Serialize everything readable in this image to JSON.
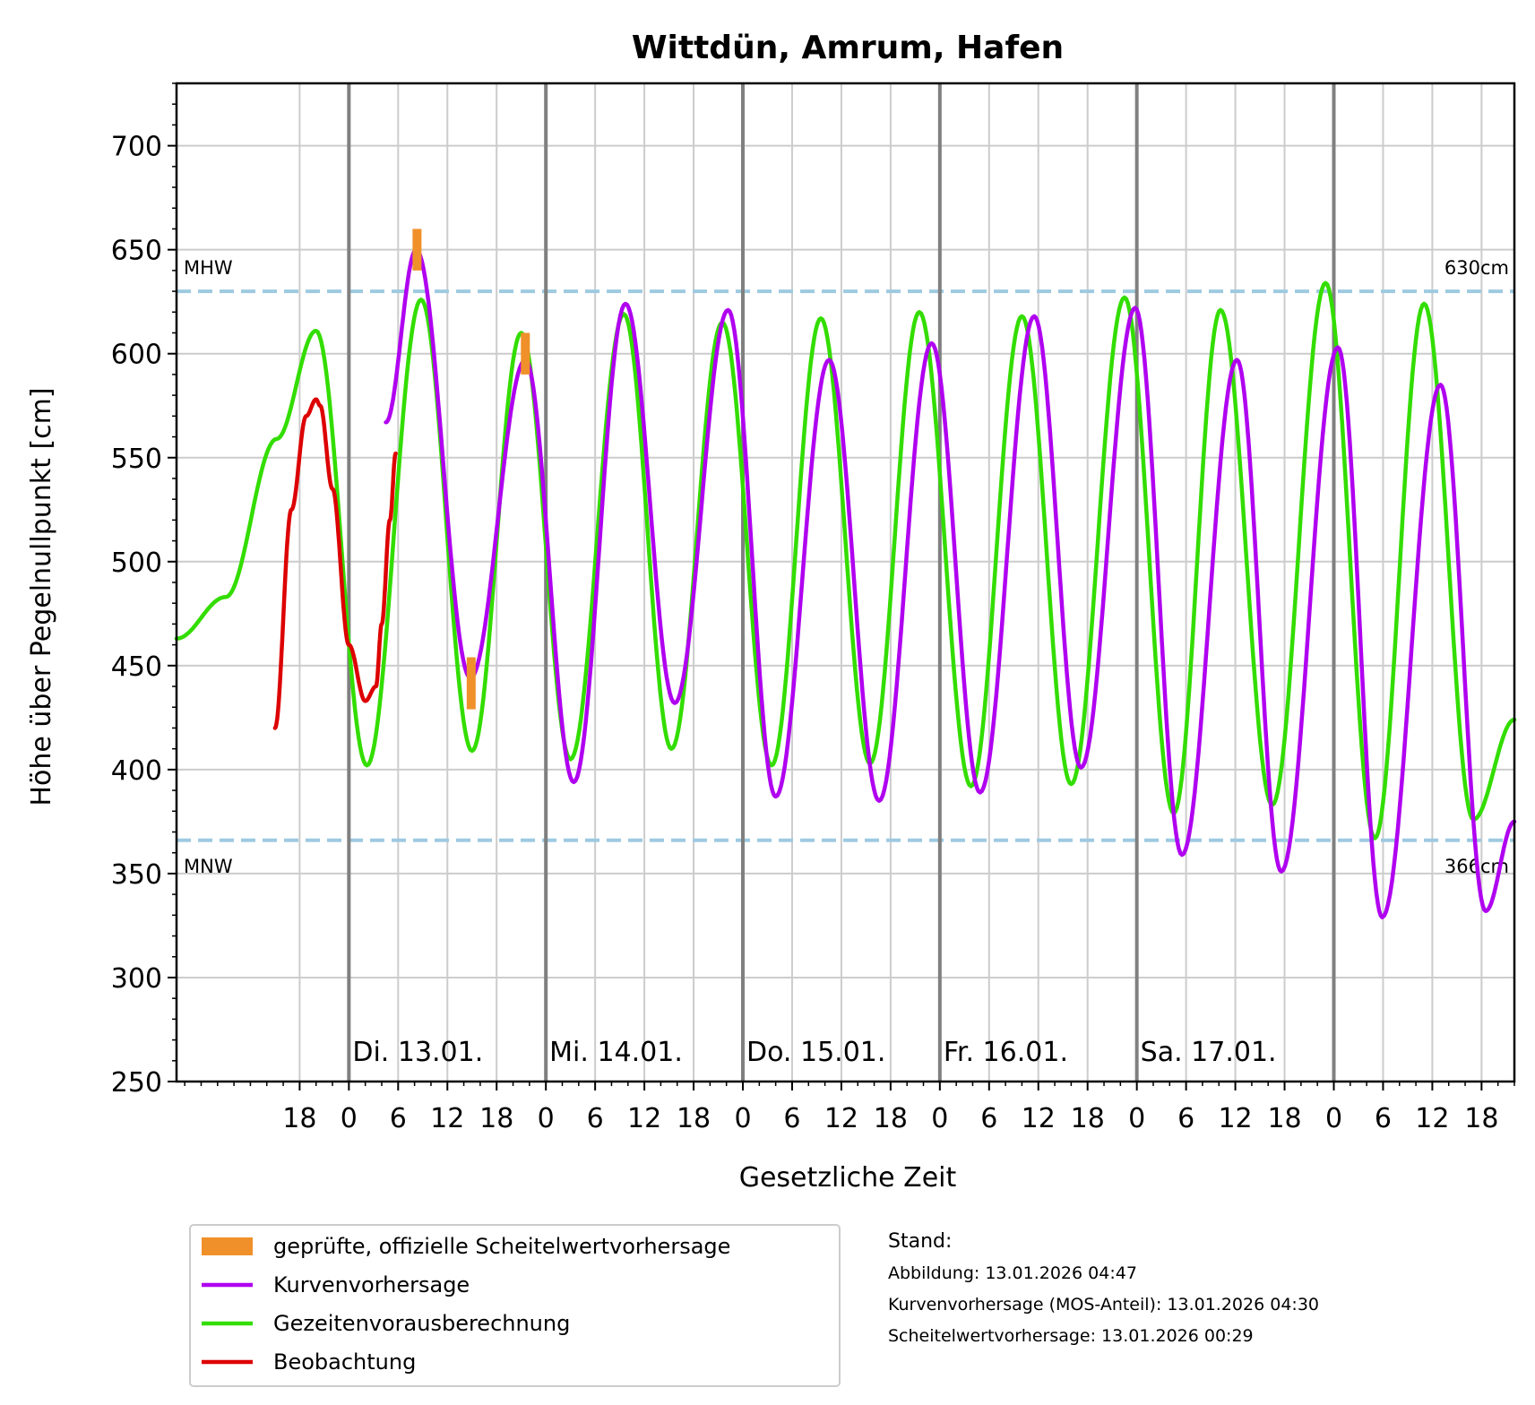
{
  "chart_data": {
    "type": "line",
    "title": "Wittdün, Amrum, Hafen",
    "xlabel": "Gesetzliche Zeit",
    "ylabel": "Höhe über Pegelnullpunkt [cm]",
    "ylim": [
      250,
      730
    ],
    "xlim_hours": [
      -21,
      142
    ],
    "yticks": [
      250,
      300,
      350,
      400,
      450,
      500,
      550,
      600,
      650,
      700
    ],
    "xtick_hours": [
      -6,
      0,
      6,
      12,
      18,
      24,
      30,
      36,
      42,
      48,
      54,
      60,
      66,
      72,
      78,
      84,
      90,
      96,
      102,
      108,
      114,
      120,
      126,
      132,
      138
    ],
    "xtick_labels": [
      "18",
      "0",
      "6",
      "12",
      "18",
      "0",
      "6",
      "12",
      "18",
      "0",
      "6",
      "12",
      "18",
      "0",
      "6",
      "12",
      "18",
      "0",
      "6",
      "12",
      "18",
      "0",
      "6",
      "12",
      "18"
    ],
    "day_lines_hours": [
      0,
      24,
      48,
      72,
      96,
      120
    ],
    "day_labels": [
      {
        "hour": 0,
        "text": "Di. 13.01."
      },
      {
        "hour": 24,
        "text": "Mi. 14.01."
      },
      {
        "hour": 48,
        "text": "Do. 15.01."
      },
      {
        "hour": 72,
        "text": "Fr. 16.01."
      },
      {
        "hour": 96,
        "text": "Sa. 17.01."
      }
    ],
    "reference_lines": [
      {
        "name": "MHW",
        "value": 630,
        "label": "630cm"
      },
      {
        "name": "MNW",
        "value": 366,
        "label": "366cm"
      }
    ],
    "grid": true,
    "legend_position": "below-left",
    "series": [
      {
        "name": "Beobachtung",
        "color": "#dd0000",
        "x_hours": [
          -9,
          -7,
          -5.2,
          -4,
          -3.5,
          -2,
          0,
          2,
          3.3,
          4,
          5,
          5.7
        ],
        "y": [
          420,
          525,
          570,
          578,
          575,
          535,
          460,
          433,
          440,
          470,
          520,
          552
        ]
      },
      {
        "name": "Kurvenvorhersage",
        "color": "#b000f0",
        "x_hours": [
          4.5,
          8.2,
          14.8,
          21.5,
          27.4,
          33.7,
          39.7,
          46.2,
          52.0,
          58.5,
          64.6,
          71.0,
          76.9,
          83.5,
          89.2,
          95.8,
          101.5,
          108.2,
          113.6,
          120.5,
          125.9,
          133.0,
          138.5,
          142
        ],
        "y": [
          567,
          650,
          444,
          597,
          394,
          624,
          432,
          621,
          387,
          597,
          385,
          605,
          389,
          618,
          401,
          622,
          359,
          597,
          351,
          603,
          329,
          585,
          332,
          375
        ]
      },
      {
        "name": "Gezeitenvorausberechnung",
        "color": "#33dd00",
        "x_hours": [
          -21,
          -15,
          -8.8,
          -4,
          2.2,
          8.8,
          15,
          21,
          27,
          33.5,
          39.3,
          45.5,
          51.5,
          57.5,
          63.5,
          69.5,
          75.8,
          82.0,
          88.0,
          94.5,
          100.5,
          106.2,
          112.5,
          119.0,
          125.0,
          131.0,
          137.0,
          142
        ],
        "y": [
          463,
          483,
          559,
          611,
          402,
          626,
          409,
          610,
          405,
          619,
          410,
          615,
          402,
          617,
          403,
          620,
          392,
          618,
          393,
          627,
          379,
          621,
          383,
          634,
          367,
          624,
          376,
          424
        ]
      },
      {
        "name": "geprüfte, offizielle Scheitelwertvorhersage",
        "color": "#f0902a",
        "marks": [
          {
            "hour": 8.3,
            "low": 640,
            "high": 660
          },
          {
            "hour": 14.9,
            "low": 429,
            "high": 454
          },
          {
            "hour": 21.5,
            "low": 590,
            "high": 610
          }
        ]
      }
    ],
    "legend": [
      {
        "label": "geprüfte, offizielle Scheitelwertvorhersage",
        "kind": "patch",
        "color": "#f0902a"
      },
      {
        "label": "Kurvenvorhersage",
        "kind": "line",
        "color": "#b000f0"
      },
      {
        "label": "Gezeitenvorausberechnung",
        "kind": "line",
        "color": "#33dd00"
      },
      {
        "label": "Beobachtung",
        "kind": "line",
        "color": "#dd0000"
      }
    ]
  },
  "stand": {
    "heading": "Stand:",
    "lines": [
      "Abbildung: 13.01.2026 04:47",
      "Kurvenvorhersage (MOS-Anteil): 13.01.2026 04:30",
      "Scheitelwertvorhersage: 13.01.2026 00:29"
    ]
  },
  "colors": {
    "ref_line": "#9ecae1",
    "grid": "#cccccc",
    "day_line": "#808080"
  }
}
